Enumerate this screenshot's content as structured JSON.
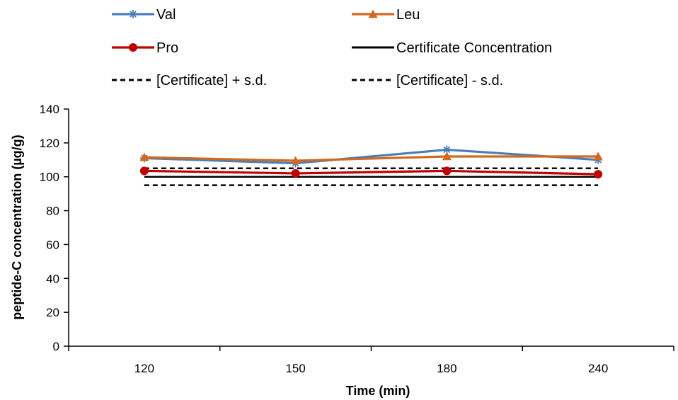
{
  "chart_data": {
    "type": "line",
    "title": "",
    "xlabel": "Time  (min)",
    "ylabel": "peptide-C concentration (µg/g)",
    "categories": [
      "120",
      "150",
      "180",
      "240"
    ],
    "ylim": [
      0,
      140
    ],
    "yticks": [
      0,
      20,
      40,
      60,
      80,
      100,
      120,
      140
    ],
    "ytick_labels": [
      "0",
      "20",
      "40",
      "60",
      "80",
      "100",
      "120",
      "140"
    ],
    "grid": false,
    "legend_position": "top",
    "series": [
      {
        "name": "Val",
        "values": [
          111,
          108,
          116,
          110
        ],
        "color": "#4A7EBB",
        "marker": "asterisk",
        "dash": "solid"
      },
      {
        "name": "Leu",
        "values": [
          111.5,
          109.5,
          112,
          112
        ],
        "color": "#D2691E",
        "marker": "triangle",
        "dash": "solid"
      },
      {
        "name": "Pro",
        "values": [
          103.5,
          102,
          103.5,
          101.5
        ],
        "color": "#C00000",
        "marker": "circle",
        "dash": "solid"
      },
      {
        "name": "Certificate Concentration",
        "values": [
          100,
          100,
          100,
          100
        ],
        "color": "#000000",
        "marker": "none",
        "dash": "solid"
      },
      {
        "name": "[Certificate] + s.d.",
        "values": [
          105,
          105,
          105,
          105
        ],
        "color": "#000000",
        "marker": "none",
        "dash": "dashed"
      },
      {
        "name": "[Certificate] - s.d.",
        "values": [
          95,
          95,
          95,
          95
        ],
        "color": "#000000",
        "marker": "none",
        "dash": "dashed"
      }
    ]
  }
}
